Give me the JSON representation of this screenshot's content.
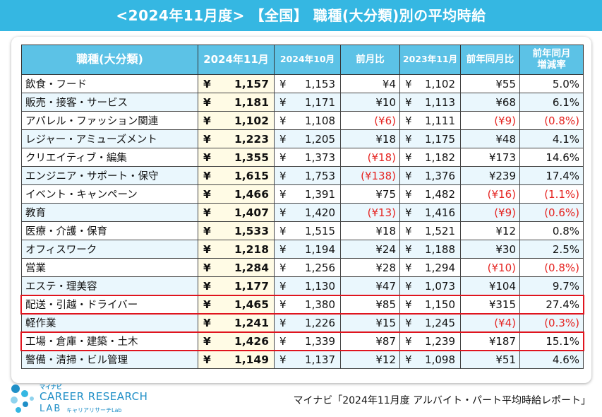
{
  "title": "<2024年11月度> 【全国】 職種(大分類)別の平均時給",
  "headers": [
    "職種(大分類)",
    "2024年11月",
    "2024年10月",
    "前月比",
    "2023年11月",
    "前年同月比",
    "前年同月\n増減率"
  ],
  "currency_symbol": "¥",
  "chart_data": {
    "type": "table",
    "title": "<2024年11月度> 【全国】 職種(大分類)別の平均時給",
    "columns": [
      "職種(大分類)",
      "2024年11月",
      "2024年10月",
      "前月比",
      "2023年11月",
      "前年同月比",
      "前年同月増減率"
    ],
    "rows": [
      {
        "category": "飲食・フード",
        "nov2024": "1,157",
        "oct2024": "1,153",
        "mom": "¥4",
        "nov2023": "1,102",
        "yoy": "¥55",
        "yoy_rate": "5.0%",
        "mom_neg": false,
        "yoy_neg": false
      },
      {
        "category": "販売・接客・サービス",
        "nov2024": "1,181",
        "oct2024": "1,171",
        "mom": "¥10",
        "nov2023": "1,113",
        "yoy": "¥68",
        "yoy_rate": "6.1%",
        "mom_neg": false,
        "yoy_neg": false
      },
      {
        "category": "アパレル・ファッション関連",
        "nov2024": "1,102",
        "oct2024": "1,108",
        "mom": "(¥6)",
        "nov2023": "1,111",
        "yoy": "(¥9)",
        "yoy_rate": "(0.8%)",
        "mom_neg": true,
        "yoy_neg": true
      },
      {
        "category": "レジャー・アミューズメント",
        "nov2024": "1,223",
        "oct2024": "1,205",
        "mom": "¥18",
        "nov2023": "1,175",
        "yoy": "¥48",
        "yoy_rate": "4.1%",
        "mom_neg": false,
        "yoy_neg": false
      },
      {
        "category": "クリエイティブ・編集",
        "nov2024": "1,355",
        "oct2024": "1,373",
        "mom": "(¥18)",
        "nov2023": "1,182",
        "yoy": "¥173",
        "yoy_rate": "14.6%",
        "mom_neg": true,
        "yoy_neg": false
      },
      {
        "category": "エンジニア・サポート・保守",
        "nov2024": "1,615",
        "oct2024": "1,753",
        "mom": "(¥138)",
        "nov2023": "1,376",
        "yoy": "¥239",
        "yoy_rate": "17.4%",
        "mom_neg": true,
        "yoy_neg": false
      },
      {
        "category": "イベント・キャンペーン",
        "nov2024": "1,466",
        "oct2024": "1,391",
        "mom": "¥75",
        "nov2023": "1,482",
        "yoy": "(¥16)",
        "yoy_rate": "(1.1%)",
        "mom_neg": false,
        "yoy_neg": true
      },
      {
        "category": "教育",
        "nov2024": "1,407",
        "oct2024": "1,420",
        "mom": "(¥13)",
        "nov2023": "1,416",
        "yoy": "(¥9)",
        "yoy_rate": "(0.6%)",
        "mom_neg": true,
        "yoy_neg": true
      },
      {
        "category": "医療・介護・保育",
        "nov2024": "1,533",
        "oct2024": "1,515",
        "mom": "¥18",
        "nov2023": "1,521",
        "yoy": "¥12",
        "yoy_rate": "0.8%",
        "mom_neg": false,
        "yoy_neg": false
      },
      {
        "category": "オフィスワーク",
        "nov2024": "1,218",
        "oct2024": "1,194",
        "mom": "¥24",
        "nov2023": "1,188",
        "yoy": "¥30",
        "yoy_rate": "2.5%",
        "mom_neg": false,
        "yoy_neg": false
      },
      {
        "category": "営業",
        "nov2024": "1,284",
        "oct2024": "1,256",
        "mom": "¥28",
        "nov2023": "1,294",
        "yoy": "(¥10)",
        "yoy_rate": "(0.8%)",
        "mom_neg": false,
        "yoy_neg": true
      },
      {
        "category": "エステ・理美容",
        "nov2024": "1,177",
        "oct2024": "1,130",
        "mom": "¥47",
        "nov2023": "1,073",
        "yoy": "¥104",
        "yoy_rate": "9.7%",
        "mom_neg": false,
        "yoy_neg": false
      },
      {
        "category": "配送・引越・ドライバー",
        "nov2024": "1,465",
        "oct2024": "1,380",
        "mom": "¥85",
        "nov2023": "1,150",
        "yoy": "¥315",
        "yoy_rate": "27.4%",
        "mom_neg": false,
        "yoy_neg": false
      },
      {
        "category": "軽作業",
        "nov2024": "1,241",
        "oct2024": "1,226",
        "mom": "¥15",
        "nov2023": "1,245",
        "yoy": "(¥4)",
        "yoy_rate": "(0.3%)",
        "mom_neg": false,
        "yoy_neg": true
      },
      {
        "category": "工場・倉庫・建築・土木",
        "nov2024": "1,426",
        "oct2024": "1,339",
        "mom": "¥87",
        "nov2023": "1,239",
        "yoy": "¥187",
        "yoy_rate": "15.1%",
        "mom_neg": false,
        "yoy_neg": false
      },
      {
        "category": "警備・清掃・ビル管理",
        "nov2024": "1,149",
        "oct2024": "1,137",
        "mom": "¥12",
        "nov2023": "1,098",
        "yoy": "¥51",
        "yoy_rate": "4.6%",
        "mom_neg": false,
        "yoy_neg": false
      }
    ],
    "highlighted_rows": [
      "配送・引越・ドライバー",
      "工場・倉庫・建築・土木"
    ]
  },
  "colors": {
    "header_band": "#35b7e2",
    "table_header": "#5cc2e6",
    "row_alt": "#eaf7fd",
    "current_month_col": "#fffbe5",
    "negative": "#e52421",
    "highlight_border": "#e0141e",
    "brand": "#1f8fc7"
  },
  "logo": {
    "small": "マイナビ",
    "main": "CAREER RESEARCH",
    "lab": "LAB",
    "sub": "キャリアリサーチLab"
  },
  "source": "マイナビ「2024年11月度 アルバイト・パート平均時給レポート」"
}
